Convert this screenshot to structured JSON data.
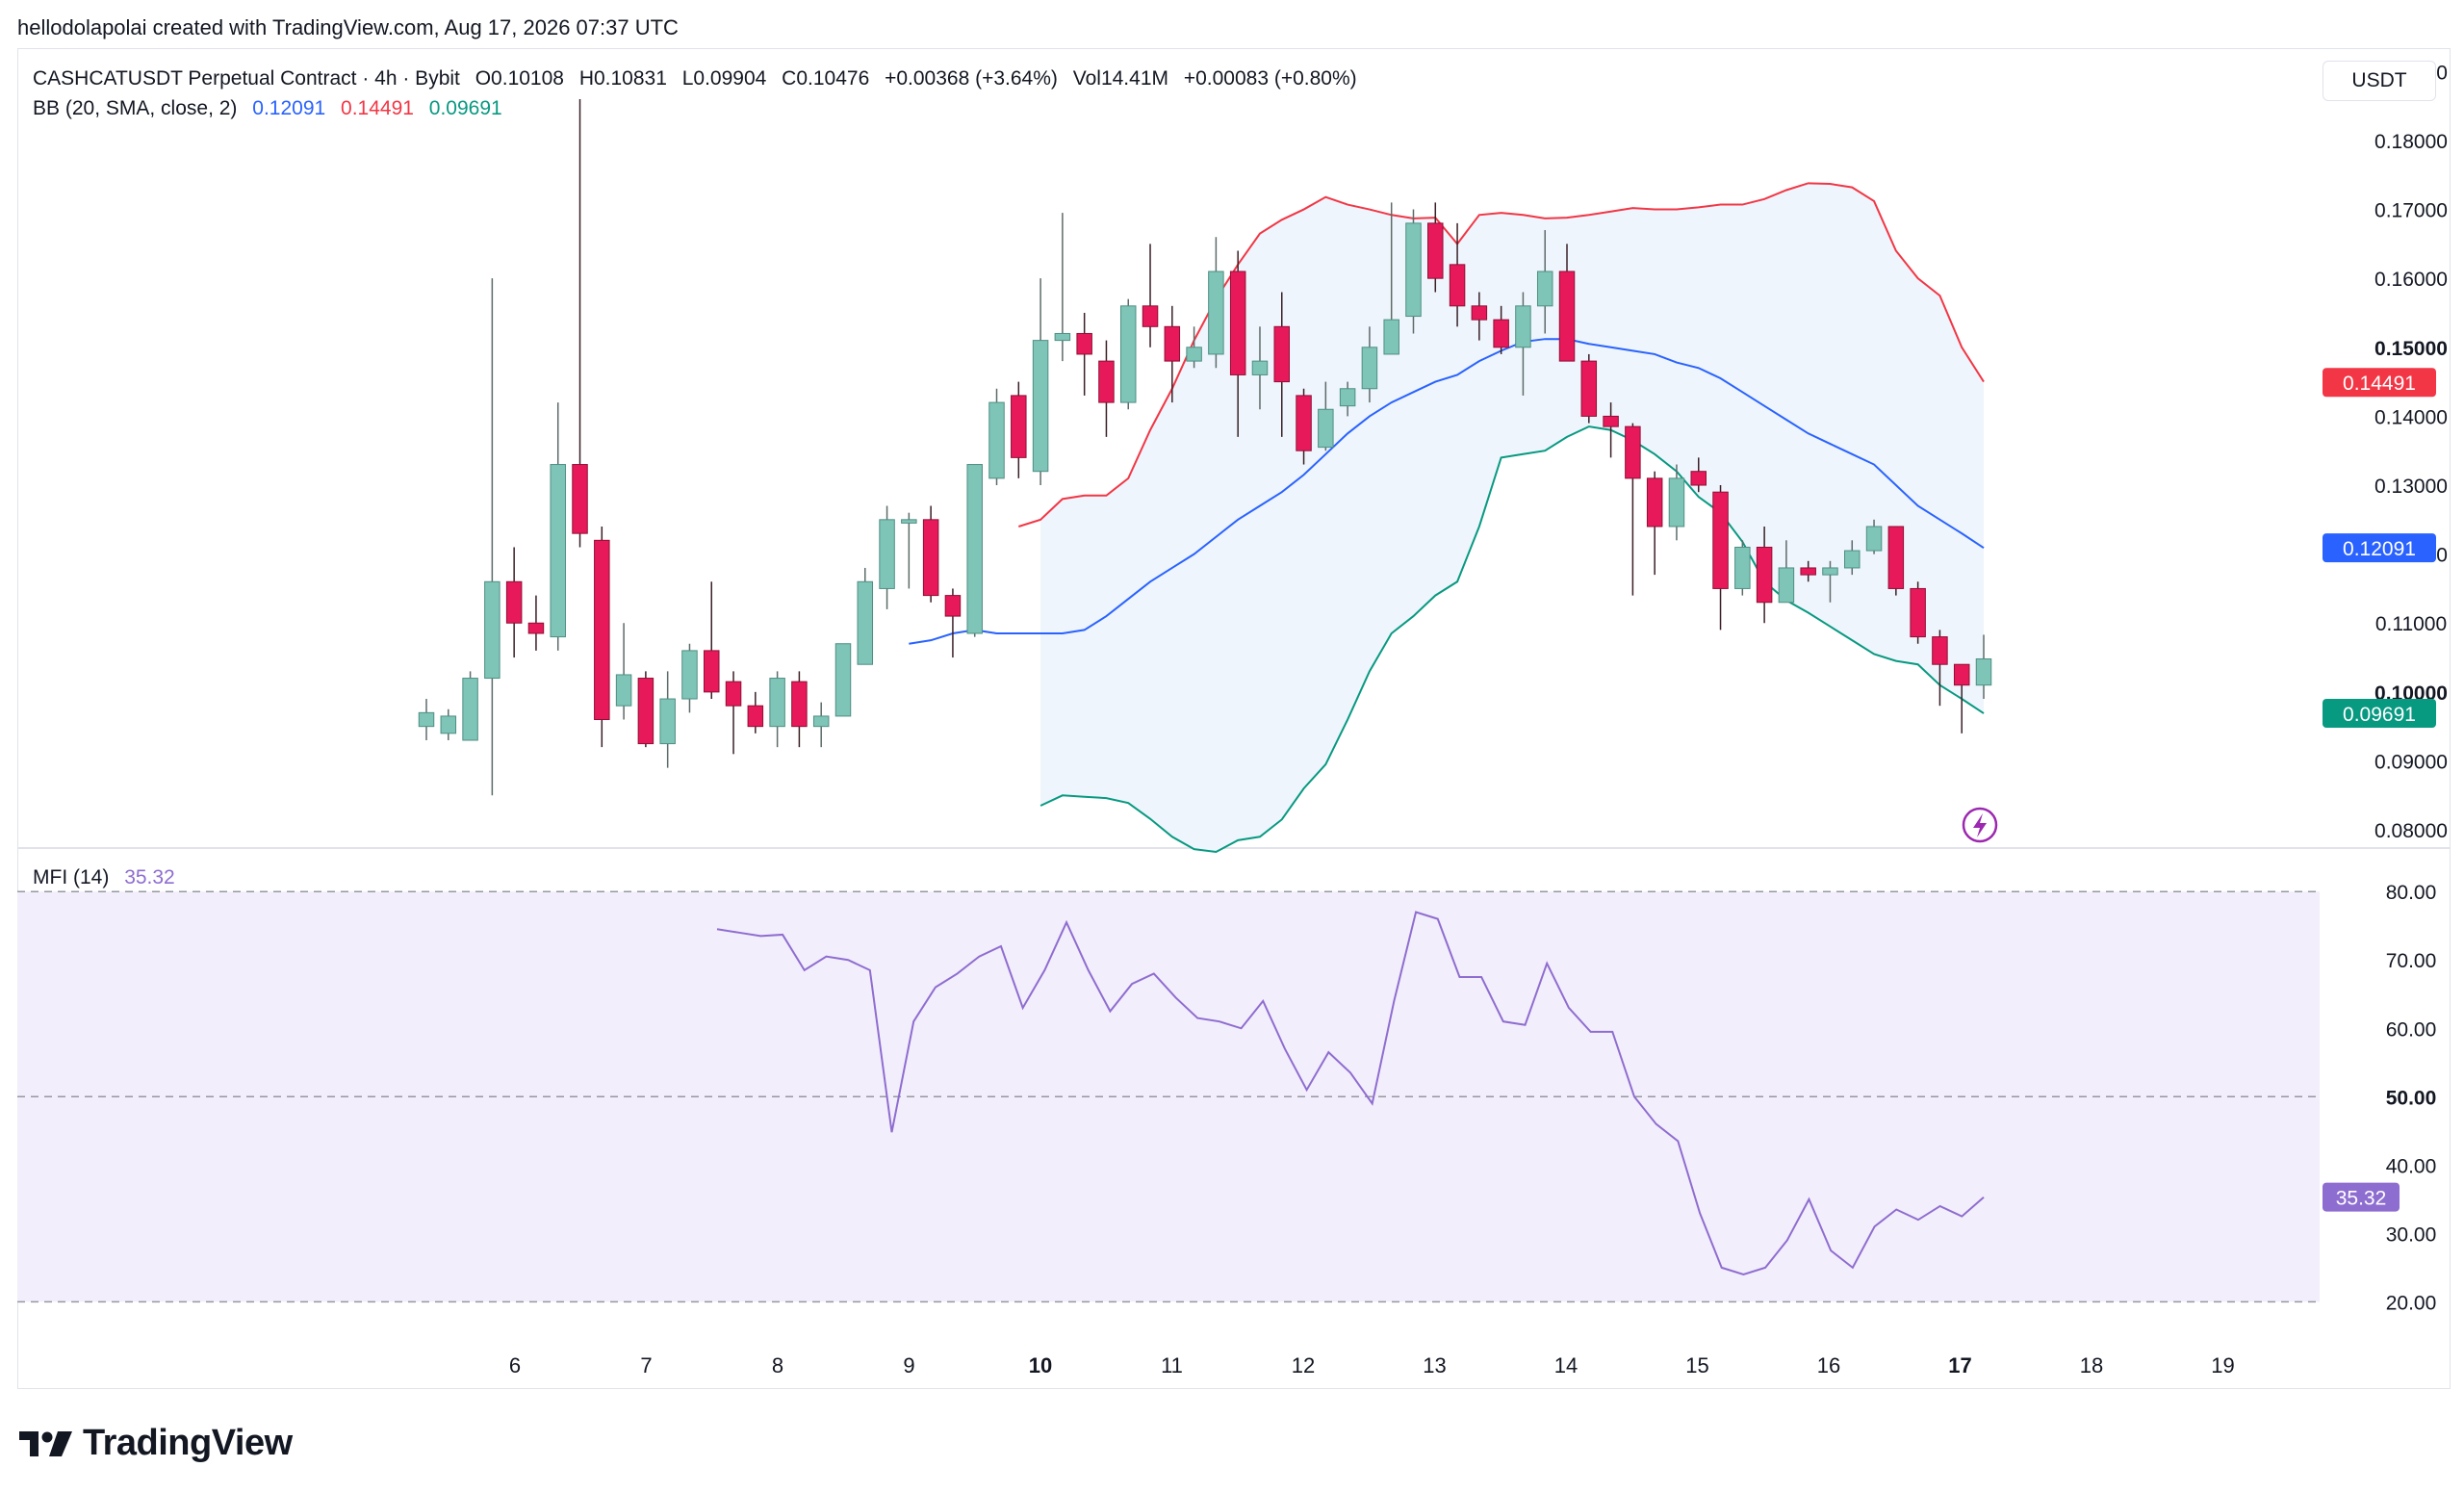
{
  "header": {
    "attribution": "hellodolapolai created with TradingView.com, Aug 17, 2026 07:37 UTC"
  },
  "legend": {
    "symbol": "CASHCATUSDT Perpetual Contract · 4h · Bybit",
    "open": "O0.10108",
    "high": "H0.10831",
    "low": "L0.09904",
    "close": "C0.10476",
    "change": "+0.00368 (+3.64%)",
    "volume": "Vol14.41M",
    "volume_change": "+0.00083 (+0.80%)",
    "bb_label": "BB (20, SMA, close, 2)",
    "bb_basis": "0.12091",
    "bb_upper": "0.14491",
    "bb_lower": "0.09691",
    "mfi_label": "MFI (14)",
    "mfi_value": "35.32"
  },
  "currency_button": "USDT",
  "colors": {
    "up": "#7ec4b7",
    "down": "#e8195a",
    "upper": "#f23645",
    "basis": "#2962ff",
    "lower": "#089981",
    "band_fill": "#eef5fc",
    "mfi": "#8e6dd0",
    "mfi_fill": "#f3eefb"
  },
  "chart_data": [
    {
      "type": "candlestick",
      "title": "CASHCATUSDT Perpetual Contract · 4h · Bybit",
      "y_axis": {
        "range": [
          0.0775,
          0.192
        ],
        "ticks": [
          "0.19000",
          "0.18000",
          "0.17000",
          "0.16000",
          "0.15000",
          "0.14000",
          "0.13000",
          "0.12000",
          "0.11000",
          "0.10000",
          "0.09000",
          "0.08000"
        ],
        "bold_ticks": [
          "0.15000",
          "0.10000"
        ]
      },
      "x_axis": {
        "ticks": [
          "6",
          "7",
          "8",
          "9",
          "10",
          "11",
          "12",
          "13",
          "14",
          "15",
          "16",
          "17",
          "18",
          "19"
        ],
        "bold_ticks": [
          "10",
          "17"
        ]
      },
      "price_tags": [
        {
          "label": "0.14491",
          "value": 0.14491,
          "color": "#f23645"
        },
        {
          "label": "0.12091",
          "value": 0.12091,
          "color": "#2962ff"
        },
        {
          "label": "0.09691",
          "value": 0.09691,
          "color": "#089981"
        }
      ],
      "candles": [
        [
          0.095,
          0.097,
          0.099,
          0.093
        ],
        [
          0.094,
          0.0965,
          0.0975,
          0.093
        ],
        [
          0.093,
          0.102,
          0.103,
          0.093
        ],
        [
          0.102,
          0.116,
          0.16,
          0.085
        ],
        [
          0.116,
          0.11,
          0.121,
          0.105
        ],
        [
          0.11,
          0.1085,
          0.114,
          0.106
        ],
        [
          0.108,
          0.133,
          0.142,
          0.106
        ],
        [
          0.133,
          0.123,
          0.186,
          0.121
        ],
        [
          0.122,
          0.096,
          0.124,
          0.092
        ],
        [
          0.098,
          0.1025,
          0.11,
          0.096
        ],
        [
          0.102,
          0.0925,
          0.103,
          0.092
        ],
        [
          0.0925,
          0.099,
          0.103,
          0.089
        ],
        [
          0.099,
          0.106,
          0.107,
          0.097
        ],
        [
          0.106,
          0.1,
          0.116,
          0.099
        ],
        [
          0.1015,
          0.098,
          0.103,
          0.091
        ],
        [
          0.098,
          0.095,
          0.1,
          0.094
        ],
        [
          0.095,
          0.102,
          0.103,
          0.092
        ],
        [
          0.1015,
          0.095,
          0.103,
          0.092
        ],
        [
          0.095,
          0.0965,
          0.0985,
          0.092
        ],
        [
          0.0965,
          0.107,
          0.107,
          0.0965
        ],
        [
          0.104,
          0.116,
          0.118,
          0.104
        ],
        [
          0.115,
          0.125,
          0.127,
          0.112
        ],
        [
          0.1245,
          0.125,
          0.126,
          0.115
        ],
        [
          0.125,
          0.114,
          0.127,
          0.113
        ],
        [
          0.114,
          0.111,
          0.115,
          0.105
        ],
        [
          0.1085,
          0.133,
          0.133,
          0.108
        ],
        [
          0.131,
          0.142,
          0.144,
          0.13
        ],
        [
          0.143,
          0.134,
          0.145,
          0.131
        ],
        [
          0.132,
          0.151,
          0.16,
          0.13
        ],
        [
          0.151,
          0.152,
          0.1695,
          0.148
        ],
        [
          0.152,
          0.149,
          0.155,
          0.143
        ],
        [
          0.148,
          0.142,
          0.151,
          0.137
        ],
        [
          0.142,
          0.156,
          0.157,
          0.141
        ],
        [
          0.156,
          0.153,
          0.165,
          0.15
        ],
        [
          0.153,
          0.148,
          0.156,
          0.142
        ],
        [
          0.148,
          0.15,
          0.153,
          0.147
        ],
        [
          0.149,
          0.161,
          0.166,
          0.147
        ],
        [
          0.161,
          0.146,
          0.164,
          0.137
        ],
        [
          0.146,
          0.148,
          0.153,
          0.141
        ],
        [
          0.153,
          0.145,
          0.158,
          0.137
        ],
        [
          0.143,
          0.135,
          0.144,
          0.133
        ],
        [
          0.1355,
          0.141,
          0.145,
          0.135
        ],
        [
          0.1415,
          0.144,
          0.145,
          0.14
        ],
        [
          0.144,
          0.15,
          0.153,
          0.142
        ],
        [
          0.149,
          0.154,
          0.171,
          0.149
        ],
        [
          0.1545,
          0.168,
          0.17,
          0.152
        ],
        [
          0.168,
          0.16,
          0.171,
          0.158
        ],
        [
          0.162,
          0.156,
          0.168,
          0.153
        ],
        [
          0.156,
          0.154,
          0.158,
          0.151
        ],
        [
          0.154,
          0.15,
          0.156,
          0.149
        ],
        [
          0.15,
          0.156,
          0.158,
          0.143
        ],
        [
          0.156,
          0.161,
          0.167,
          0.152
        ],
        [
          0.161,
          0.148,
          0.165,
          0.148
        ],
        [
          0.148,
          0.14,
          0.149,
          0.139
        ],
        [
          0.14,
          0.1385,
          0.142,
          0.134
        ],
        [
          0.1385,
          0.131,
          0.139,
          0.114
        ],
        [
          0.131,
          0.124,
          0.132,
          0.117
        ],
        [
          0.124,
          0.131,
          0.133,
          0.122
        ],
        [
          0.132,
          0.13,
          0.134,
          0.129
        ],
        [
          0.129,
          0.115,
          0.13,
          0.109
        ],
        [
          0.115,
          0.121,
          0.122,
          0.114
        ],
        [
          0.121,
          0.113,
          0.124,
          0.11
        ],
        [
          0.113,
          0.118,
          0.122,
          0.113
        ],
        [
          0.118,
          0.117,
          0.119,
          0.116
        ],
        [
          0.117,
          0.118,
          0.119,
          0.113
        ],
        [
          0.118,
          0.1205,
          0.122,
          0.117
        ],
        [
          0.1205,
          0.124,
          0.125,
          0.12
        ],
        [
          0.124,
          0.115,
          0.124,
          0.114
        ],
        [
          0.115,
          0.108,
          0.116,
          0.107
        ],
        [
          0.108,
          0.104,
          0.109,
          0.098
        ],
        [
          0.104,
          0.101,
          0.104,
          0.094
        ],
        [
          0.101,
          0.1048,
          0.1083,
          0.099
        ]
      ],
      "bb_upper": [
        [
          0.124,
          0.125,
          0.128,
          0.1285,
          0.1285,
          0.131,
          0.138,
          0.144,
          0.151,
          0.157,
          0.162,
          0.1665,
          0.1685,
          0.17,
          0.1718,
          0.1707,
          0.17,
          0.1692,
          0.1687,
          0.1688,
          0.165,
          0.1692,
          0.1695,
          0.1692,
          0.1687,
          0.1688,
          0.1692,
          0.1697,
          0.1702,
          0.17,
          0.17,
          0.1703,
          0.1707,
          0.1707,
          0.1715,
          0.1728,
          0.1738,
          0.1737,
          0.1732,
          0.1712,
          0.164,
          0.16,
          0.1575,
          0.15,
          0.145
        ]
      ],
      "bb_basis": [
        [
          0.107,
          0.1075,
          0.1085,
          0.109,
          0.1085,
          0.1085,
          0.1085,
          0.1085,
          0.109,
          0.111,
          0.1135,
          0.116,
          0.118,
          0.12,
          0.1225,
          0.125,
          0.127,
          0.129,
          0.1315,
          0.1345,
          0.1375,
          0.14,
          0.142,
          0.1435,
          0.145,
          0.146,
          0.148,
          0.1495,
          0.1508,
          0.1512,
          0.1512,
          0.1505,
          0.15,
          0.1495,
          0.149,
          0.1478,
          0.147,
          0.1455,
          0.1435,
          0.1415,
          0.1395,
          0.1375,
          0.136,
          0.1345,
          0.133,
          0.13,
          0.127,
          0.125,
          0.123,
          0.1209
        ]
      ],
      "bb_lower": [
        [
          0.0835,
          0.085,
          0.0848,
          0.0846,
          0.0839,
          0.0816,
          0.079,
          0.0772,
          0.0768,
          0.0785,
          0.079,
          0.0815,
          0.086,
          0.0895,
          0.096,
          0.103,
          0.1085,
          0.111,
          0.114,
          0.116,
          0.124,
          0.134,
          0.1345,
          0.135,
          0.137,
          0.1385,
          0.138,
          0.1365,
          0.1345,
          0.132,
          0.1283,
          0.126,
          0.1218,
          0.116,
          0.1133,
          0.1115,
          0.1095,
          0.1075,
          0.1055,
          0.1045,
          0.104,
          0.101,
          0.099,
          0.0969
        ]
      ]
    },
    {
      "type": "line",
      "title": "MFI (14)",
      "y_axis": {
        "range": [
          13.3,
          85.8
        ],
        "ticks": [
          "80.00",
          "70.00",
          "60.00",
          "50.00",
          "40.00",
          "30.00",
          "20.00"
        ],
        "bold_ticks": [
          "50.00"
        ]
      },
      "levels": [
        80,
        50,
        20
      ],
      "current": "35.32",
      "series": [
        {
          "values": [
            74.5,
            74.0,
            73.5,
            73.7,
            68.5,
            70.5,
            70.0,
            68.5,
            44.8,
            61.0,
            66.0,
            68.0,
            70.5,
            72.0,
            63.0,
            68.5,
            75.5,
            68.5,
            62.5,
            66.5,
            68.0,
            64.5,
            61.5,
            61.0,
            60.0,
            64.0,
            57.0,
            51.0,
            56.5,
            53.5,
            49.0,
            64.0,
            77.0,
            76.0,
            67.5,
            67.5,
            61.0,
            60.5,
            69.5,
            63.0,
            59.5,
            59.5,
            50.0,
            46.0,
            43.5,
            33.0,
            25.0,
            24.0,
            25.0,
            29.0,
            35.0,
            27.5,
            25.0,
            31.0,
            33.5,
            32.0,
            34.0,
            32.5,
            35.3
          ]
        }
      ]
    }
  ]
}
